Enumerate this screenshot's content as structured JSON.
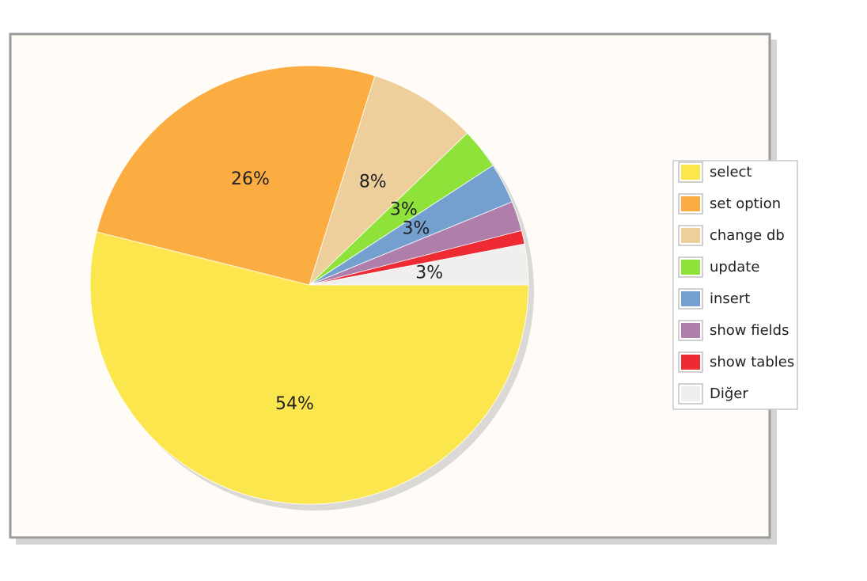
{
  "chart_data": {
    "type": "pie",
    "title": "",
    "legend_position": "right",
    "slices": [
      {
        "name": "select",
        "value": 54,
        "label": "54%",
        "color": "#fce64e"
      },
      {
        "name": "set option",
        "value": 26,
        "label": "26%",
        "color": "#fbad42"
      },
      {
        "name": "change db",
        "value": 8,
        "label": "8%",
        "color": "#eece9a"
      },
      {
        "name": "update",
        "value": 3,
        "label": "3%",
        "color": "#8ee23a"
      },
      {
        "name": "insert",
        "value": 3,
        "label": "3%",
        "color": "#74a0d0"
      },
      {
        "name": "show fields",
        "value": 2.2,
        "label": "",
        "color": "#b07eaa"
      },
      {
        "name": "show tables",
        "value": 1,
        "label": "",
        "color": "#ee2a33"
      },
      {
        "name": "Diğer",
        "value": 3,
        "label": "3%",
        "color": "#f0efed"
      }
    ]
  }
}
